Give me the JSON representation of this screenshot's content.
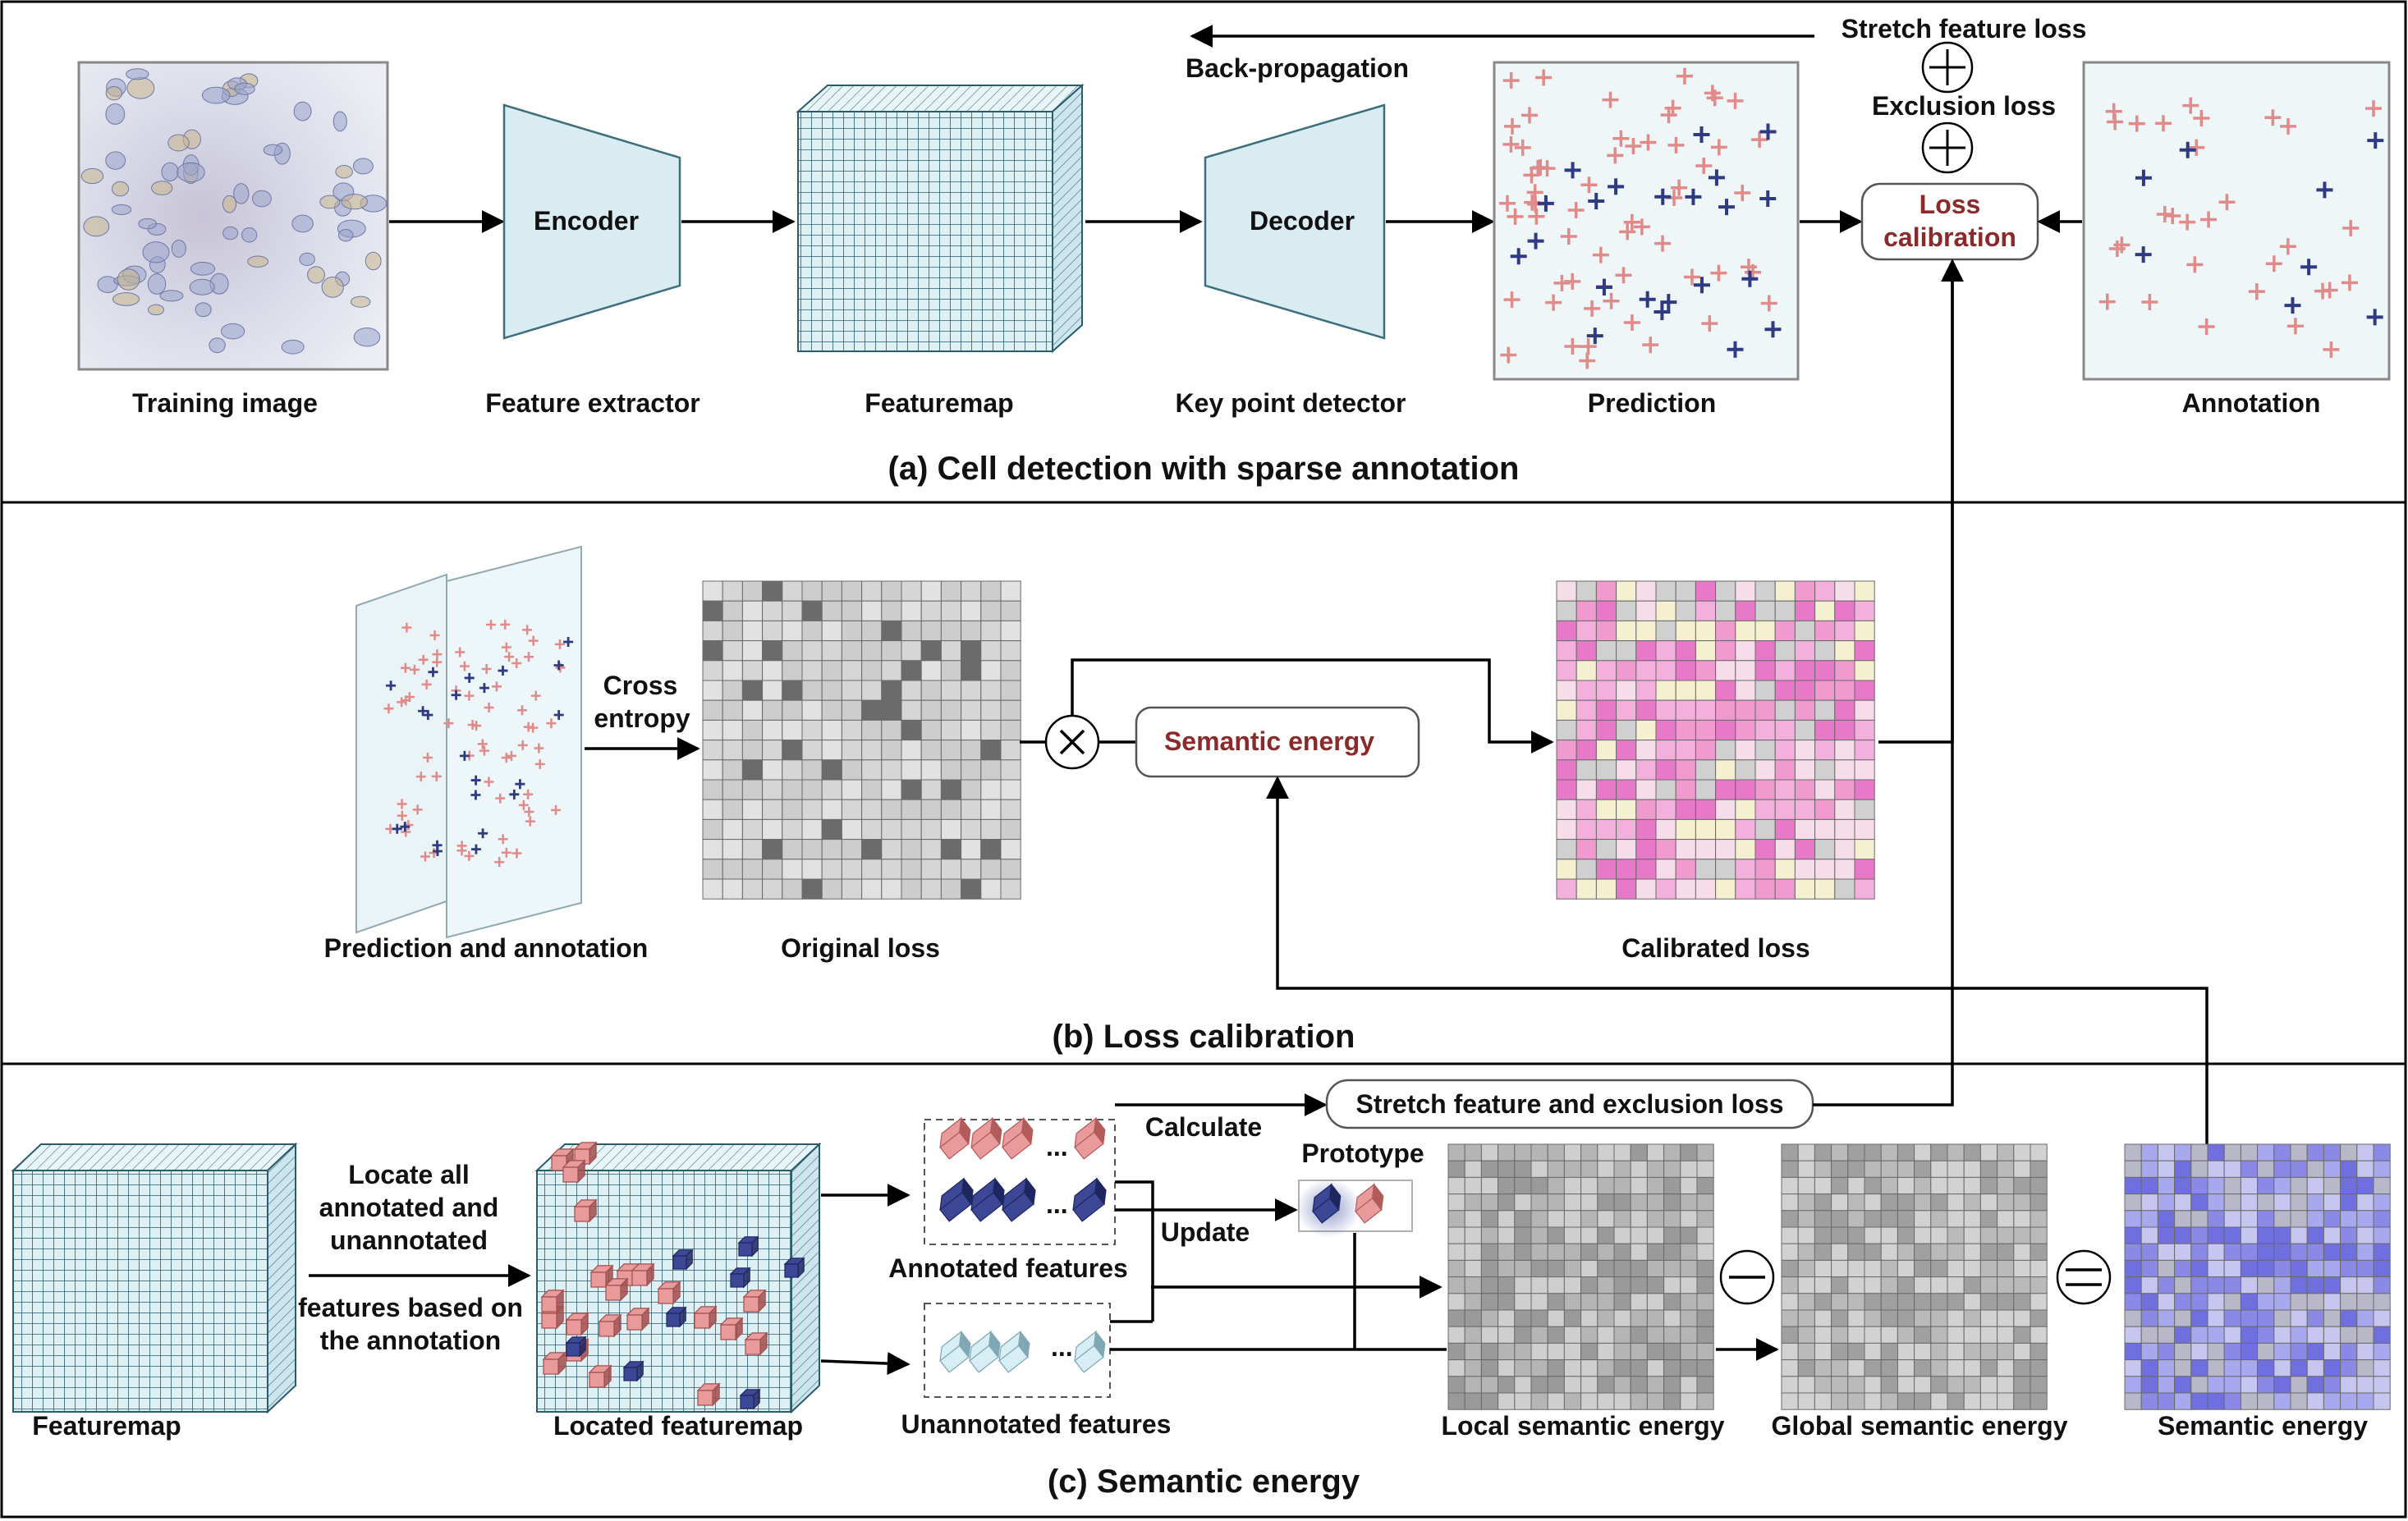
{
  "panels": {
    "a_title": "(a) Cell detection with sparse annotation",
    "b_title": "(b) Loss calibration",
    "c_title": "(c) Semantic energy"
  },
  "panel_a": {
    "training_image": "Training image",
    "encoder": "Encoder",
    "feature_extractor": "Feature extractor",
    "featuremap": "Featuremap",
    "decoder": "Decoder",
    "key_point_detector": "Key point detector",
    "prediction": "Prediction",
    "annotation": "Annotation",
    "loss_calibration_line1": "Loss",
    "loss_calibration_line2": "calibration",
    "stretch_feature_loss": "Stretch feature loss",
    "exclusion_loss": "Exclusion loss",
    "back_propagation": "Back-propagation"
  },
  "panel_b": {
    "cross_line1": "Cross",
    "cross_line2": "entropy",
    "prediction_and_annotation": "Prediction and annotation",
    "original_loss": "Original loss",
    "semantic_energy_box": "Semantic energy",
    "calibrated_loss": "Calibrated loss"
  },
  "panel_c": {
    "featuremap": "Featuremap",
    "locate_line1": "Locate all",
    "locate_line2": "annotated and",
    "locate_line3": "unannotated",
    "locate_line4": "features based on",
    "locate_line5": "the annotation",
    "located_featuremap": "Located featuremap",
    "calculate": "Calculate",
    "stretch_box": "Stretch feature and exclusion loss",
    "prototype": "Prototype",
    "update": "Update",
    "annotated_features": "Annotated features",
    "unannotated_features": "Unannotated features",
    "local_semantic_energy": "Local semantic energy",
    "global_semantic_energy": "Global semantic energy",
    "semantic_energy": "Semantic energy",
    "ellipsis": "..."
  },
  "colors": {
    "featuremap_fill": "#dff0f5",
    "featuremap_line": "#2a5c6c",
    "trapezoid": "#d8ecf2",
    "plot_bg": "#eef6f7",
    "pink_marker": "#e08a8a",
    "blue_marker": "#2e3a82",
    "loss_text": "#8b2a2a",
    "calibrated_palette": [
      "#e878c8",
      "#f3b0dc",
      "#f7ddea",
      "#f4f0d0",
      "#d0d0d0",
      "#f09ad0"
    ],
    "semantic_palette": [
      "#8a8ae6",
      "#a8a8ee",
      "#c6c6f0",
      "#b8b8c8",
      "#6f6fe0"
    ]
  },
  "icons": [
    "plus-operator-icon",
    "times-operator-icon",
    "minus-operator-icon",
    "equals-operator-icon",
    "tissue-image-icon",
    "cube-icon"
  ]
}
